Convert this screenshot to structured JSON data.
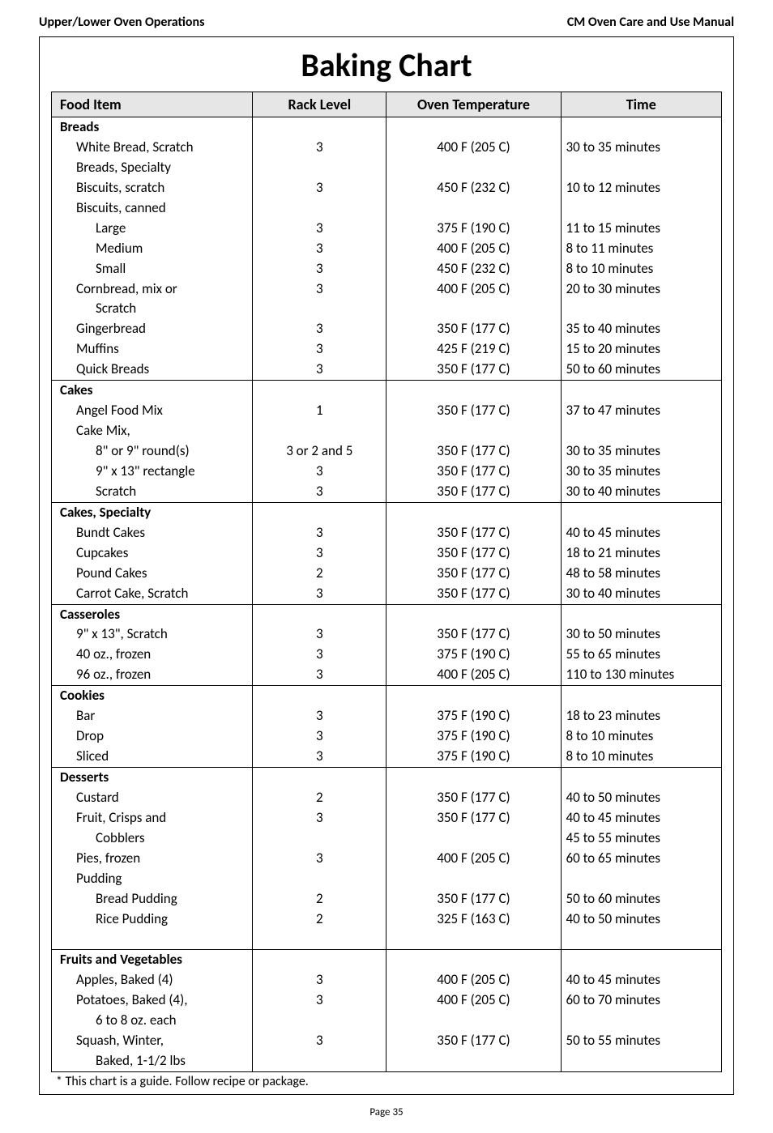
{
  "header": {
    "left": "Upper/Lower Oven Operations",
    "right": "CM Oven Care and Use Manual"
  },
  "title": "Baking Chart",
  "columns": [
    "Food Item",
    "Rack Level",
    "Oven Temperature",
    "Time"
  ],
  "sections": [
    {
      "name": "Breads",
      "rows": [
        {
          "label": "White Bread, Scratch",
          "indent": 1,
          "rack": "3",
          "temp": "400  F (205  C)",
          "time": "30 to 35 minutes"
        },
        {
          "label": "Breads, Specialty",
          "indent": 1
        },
        {
          "label": "Biscuits, scratch",
          "indent": 1,
          "rack": "3",
          "temp": "450  F (232  C)",
          "time": "10 to 12 minutes"
        },
        {
          "label": "Biscuits, canned",
          "indent": 1
        },
        {
          "label": "Large",
          "indent": 2,
          "rack": "3",
          "temp": "375  F (190  C)",
          "time": "11 to 15 minutes"
        },
        {
          "label": "Medium",
          "indent": 2,
          "rack": "3",
          "temp": "400  F (205  C)",
          "time": "8 to 11 minutes"
        },
        {
          "label": "Small",
          "indent": 2,
          "rack": "3",
          "temp": "450  F (232  C)",
          "time": "8 to 10 minutes"
        },
        {
          "label": "Cornbread, mix or",
          "indent": 1,
          "rack": "3",
          "temp": "400  F (205  C)",
          "time": "20 to 30 minutes"
        },
        {
          "label": "Scratch",
          "indent": 2
        },
        {
          "label": "Gingerbread",
          "indent": 1,
          "rack": "3",
          "temp": "350  F (177  C)",
          "time": "35 to 40 minutes"
        },
        {
          "label": "Muffins",
          "indent": 1,
          "rack": "3",
          "temp": "425  F (219  C)",
          "time": "15 to 20 minutes"
        },
        {
          "label": "Quick Breads",
          "indent": 1,
          "rack": "3",
          "temp": "350  F (177  C)",
          "time": "50 to 60 minutes"
        }
      ]
    },
    {
      "name": "Cakes",
      "rows": [
        {
          "label": "Angel Food Mix",
          "indent": 1,
          "rack": "1",
          "temp": "350  F (177  C)",
          "time": "37 to 47 minutes"
        },
        {
          "label": "Cake Mix,",
          "indent": 1
        },
        {
          "label": "8\" or 9\" round(s)",
          "indent": 2,
          "rack": "3 or 2 and 5",
          "temp": "350  F (177  C)",
          "time": "30 to 35 minutes"
        },
        {
          "label": "9\" x 13\" rectangle",
          "indent": 2,
          "rack": "3",
          "temp": "350  F (177  C)",
          "time": "30 to 35 minutes"
        },
        {
          "label": "Scratch",
          "indent": 2,
          "rack": "3",
          "temp": "350  F (177  C)",
          "time": "30 to 40 minutes"
        }
      ]
    },
    {
      "name": "Cakes, Specialty",
      "rows": [
        {
          "label": "Bundt Cakes",
          "indent": 1,
          "rack": "3",
          "temp": "350  F (177  C)",
          "time": "40 to 45 minutes"
        },
        {
          "label": "Cupcakes",
          "indent": 1,
          "rack": "3",
          "temp": "350  F (177  C)",
          "time": "18 to 21 minutes"
        },
        {
          "label": "Pound Cakes",
          "indent": 1,
          "rack": "2",
          "temp": "350  F (177  C)",
          "time": "48 to 58 minutes"
        },
        {
          "label": "Carrot Cake, Scratch",
          "indent": 1,
          "rack": "3",
          "temp": "350  F (177  C)",
          "time": "30 to 40 minutes"
        }
      ]
    },
    {
      "name": "Casseroles",
      "rows": [
        {
          "label": "9\" x 13\", Scratch",
          "indent": 1,
          "rack": "3",
          "temp": "350  F (177  C)",
          "time": "30 to 50 minutes"
        },
        {
          "label": "40 oz., frozen",
          "indent": 1,
          "rack": "3",
          "temp": "375  F (190  C)",
          "time": "55 to 65 minutes"
        },
        {
          "label": "96 oz., frozen",
          "indent": 1,
          "rack": "3",
          "temp": "400  F (205  C)",
          "time": "110 to 130 minutes"
        }
      ]
    },
    {
      "name": "Cookies",
      "rows": [
        {
          "label": "Bar",
          "indent": 1,
          "rack": "3",
          "temp": "375  F (190  C)",
          "time": "18 to 23 minutes"
        },
        {
          "label": "Drop",
          "indent": 1,
          "rack": "3",
          "temp": "375  F (190  C)",
          "time": "8 to 10 minutes"
        },
        {
          "label": "Sliced",
          "indent": 1,
          "rack": "3",
          "temp": "375  F (190  C)",
          "time": "8 to 10 minutes"
        }
      ]
    },
    {
      "name": "Desserts",
      "rows": [
        {
          "label": "Custard",
          "indent": 1,
          "rack": "2",
          "temp": "350  F (177  C)",
          "time": "40 to 50 minutes"
        },
        {
          "label": "Fruit, Crisps and",
          "indent": 1,
          "rack": "3",
          "temp": "350  F (177  C)",
          "time": "40 to 45 minutes"
        },
        {
          "label": "Cobblers",
          "indent": 2,
          "time": "45 to 55 minutes"
        },
        {
          "label": "Pies, frozen",
          "indent": 1,
          "rack": "3",
          "temp": "400  F (205  C)",
          "time": "60 to 65 minutes"
        },
        {
          "label": "Pudding",
          "indent": 1
        },
        {
          "label": "Bread Pudding",
          "indent": 2,
          "rack": "2",
          "temp": "350  F (177  C)",
          "time": "50 to 60 minutes"
        },
        {
          "label": "Rice Pudding",
          "indent": 2,
          "rack": "2",
          "temp": "325  F (163  C)",
          "time": "40 to 50 minutes"
        },
        {
          "label": "",
          "indent": 1
        }
      ]
    },
    {
      "name": "Fruits and Vegetables",
      "rows": [
        {
          "label": "Apples, Baked (4)",
          "indent": 1,
          "rack": "3",
          "temp": "400  F (205  C)",
          "time": "40 to 45 minutes"
        },
        {
          "label": "Potatoes, Baked (4),",
          "indent": 1,
          "rack": "3",
          "temp": "400  F (205  C)",
          "time": "60 to 70 minutes"
        },
        {
          "label": "6 to 8 oz. each",
          "indent": 2
        },
        {
          "label": "Squash, Winter,",
          "indent": 1,
          "rack": "3",
          "temp": "350  F (177  C)",
          "time": "50 to 55 minutes"
        },
        {
          "label": "Baked, 1-1/2 lbs",
          "indent": 2
        }
      ]
    }
  ],
  "footnote": "* This chart is a guide. Follow recipe or package.",
  "page_number": "Page 35"
}
